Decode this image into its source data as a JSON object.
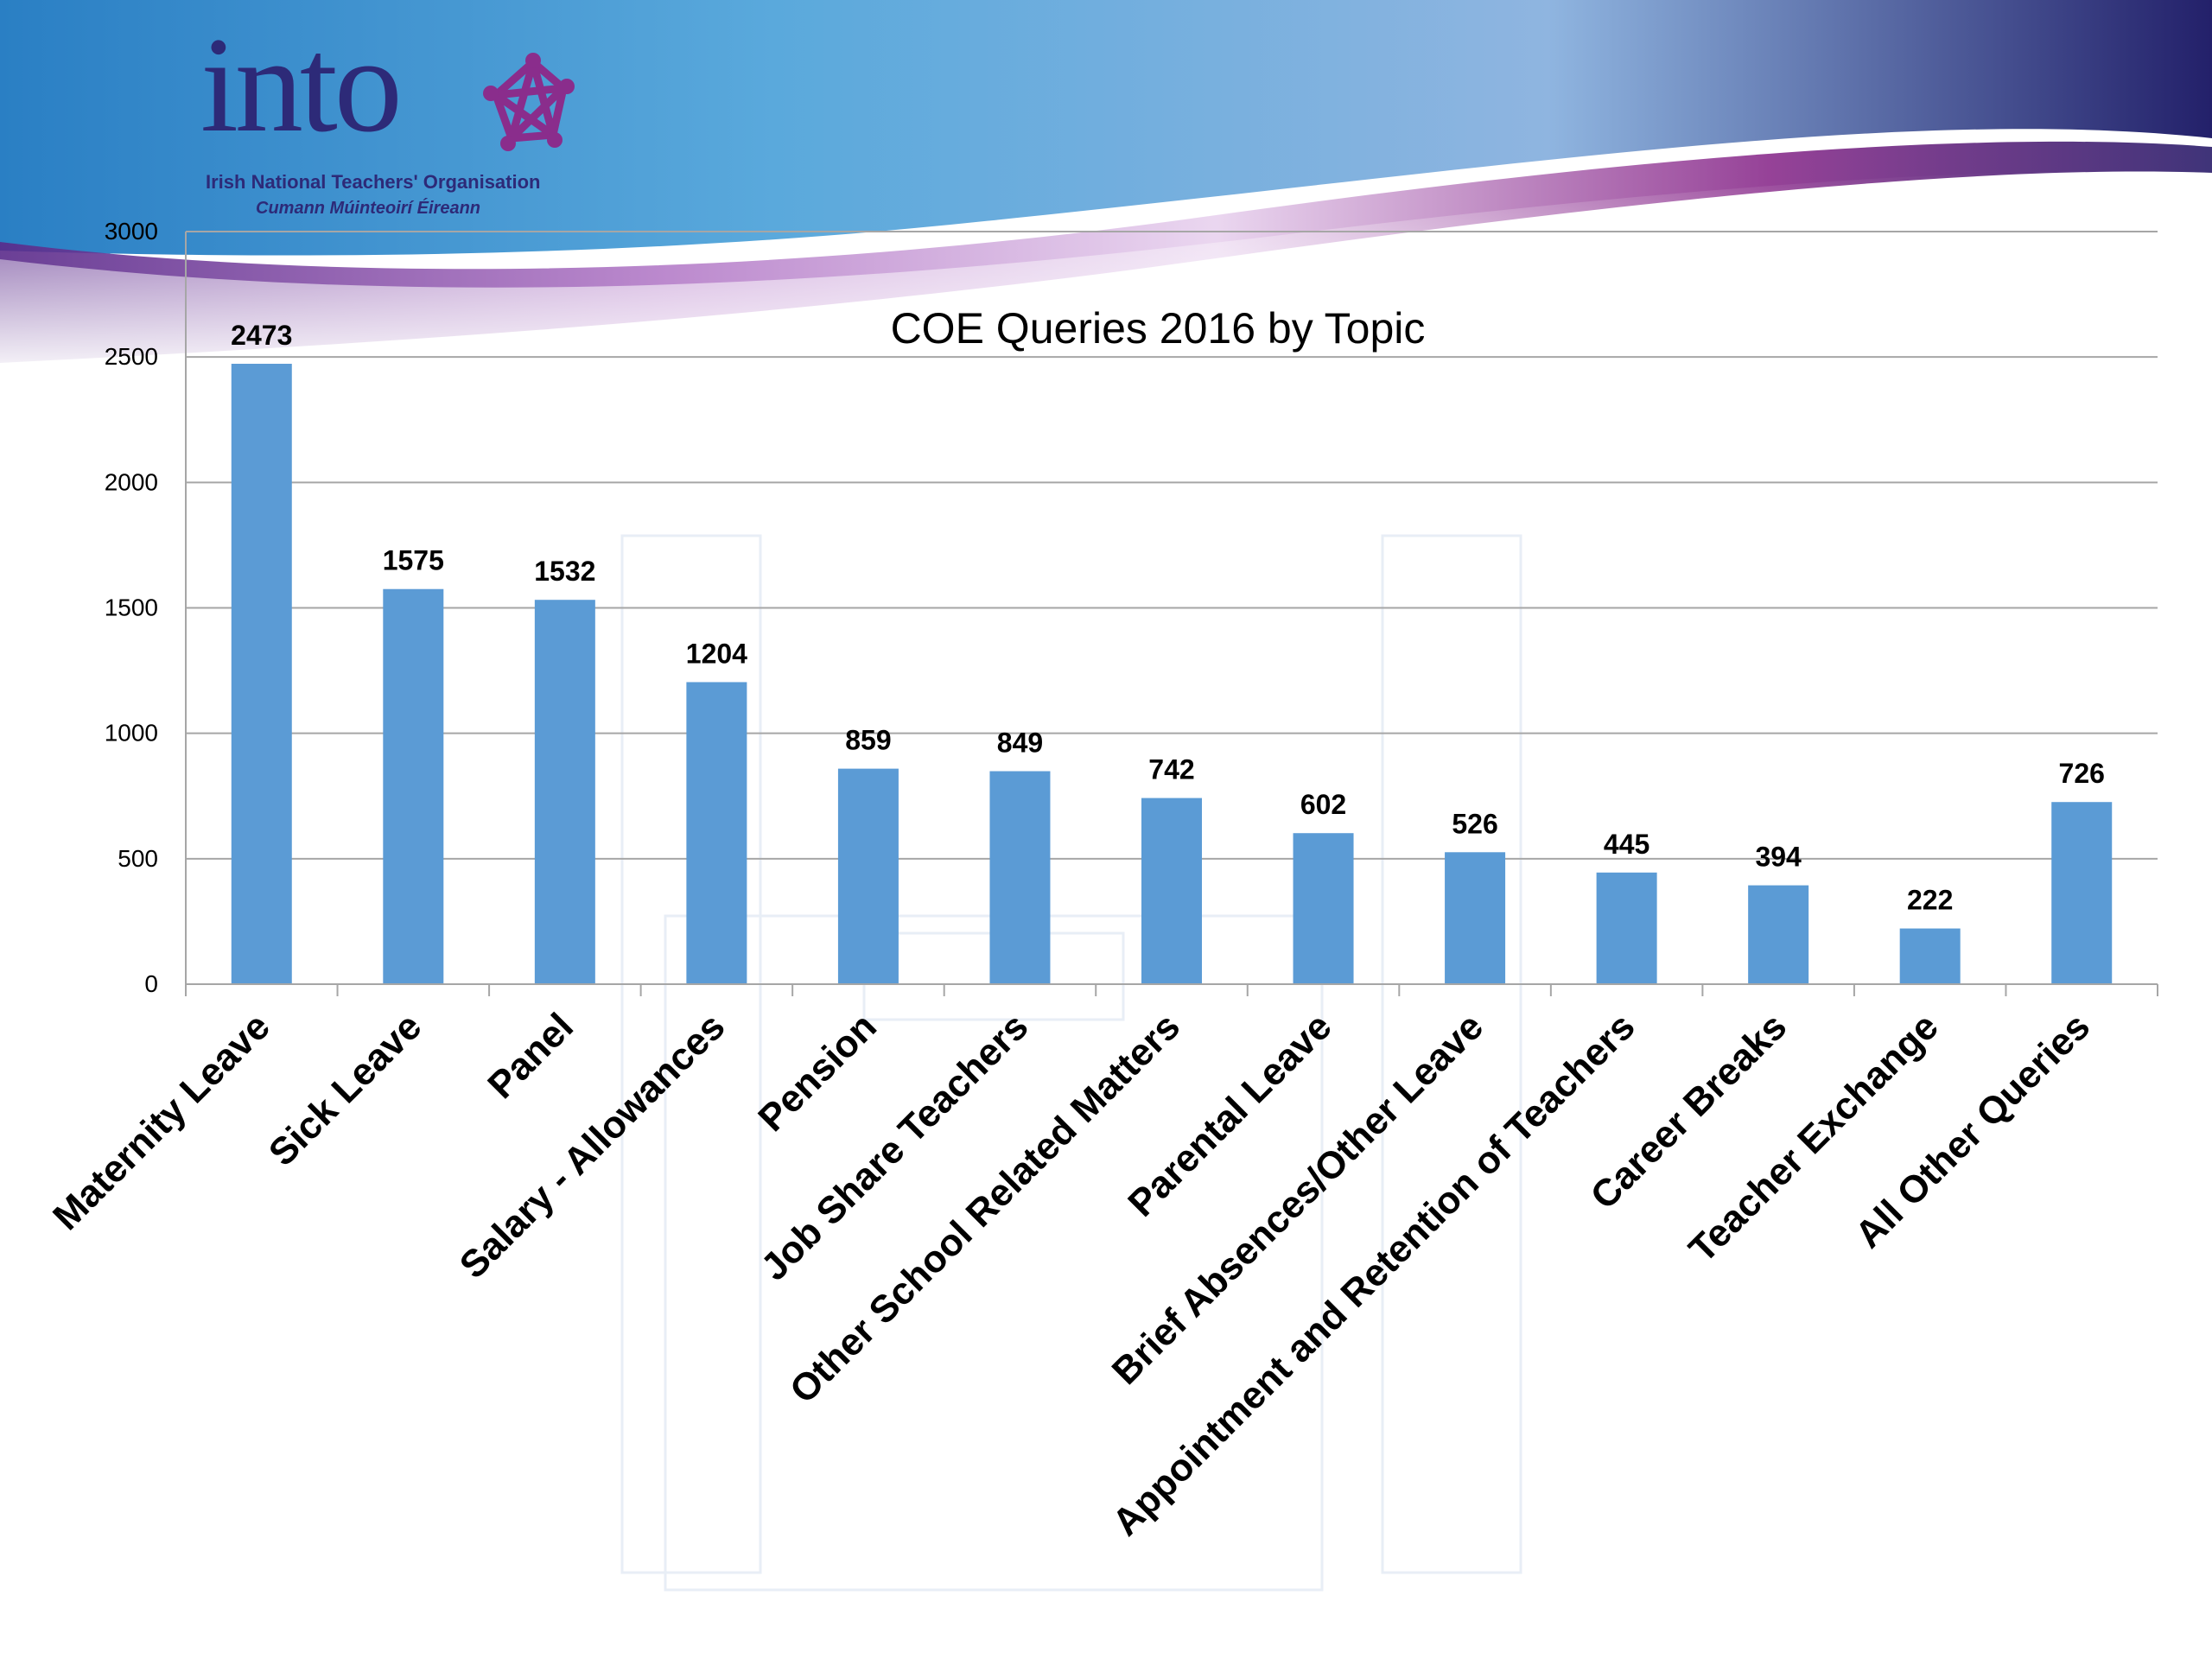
{
  "logo": {
    "wordmark": "into",
    "subtitle_en": "Irish National Teachers' Organisation",
    "subtitle_ga": "Cumann Múinteoirí Éireann"
  },
  "colors": {
    "bar": "#5b9bd5",
    "grid": "#a6a6a6",
    "text": "#000000",
    "brand_navy": "#2d2a78",
    "brand_purple": "#8a2d8c"
  },
  "chart_data": {
    "type": "bar",
    "title": "COE Queries 2016 by Topic",
    "xlabel": "",
    "ylabel": "",
    "ylim": [
      0,
      3000
    ],
    "yticks": [
      0,
      500,
      1000,
      1500,
      2000,
      2500,
      3000
    ],
    "grid": true,
    "legend": "none",
    "categories": [
      "Maternity Leave",
      "Sick Leave",
      "Panel",
      "Salary - Allowances",
      "Pension",
      "Job Share Teachers",
      "Other School Related Matters",
      "Parental Leave",
      "Brief Absences/Other Leave",
      "Appointment and Retention of Teachers",
      "Career Breaks",
      "Teacher Exchange",
      "All Other Queries"
    ],
    "values": [
      2473,
      1575,
      1532,
      1204,
      859,
      849,
      742,
      602,
      526,
      445,
      394,
      222,
      726
    ]
  }
}
